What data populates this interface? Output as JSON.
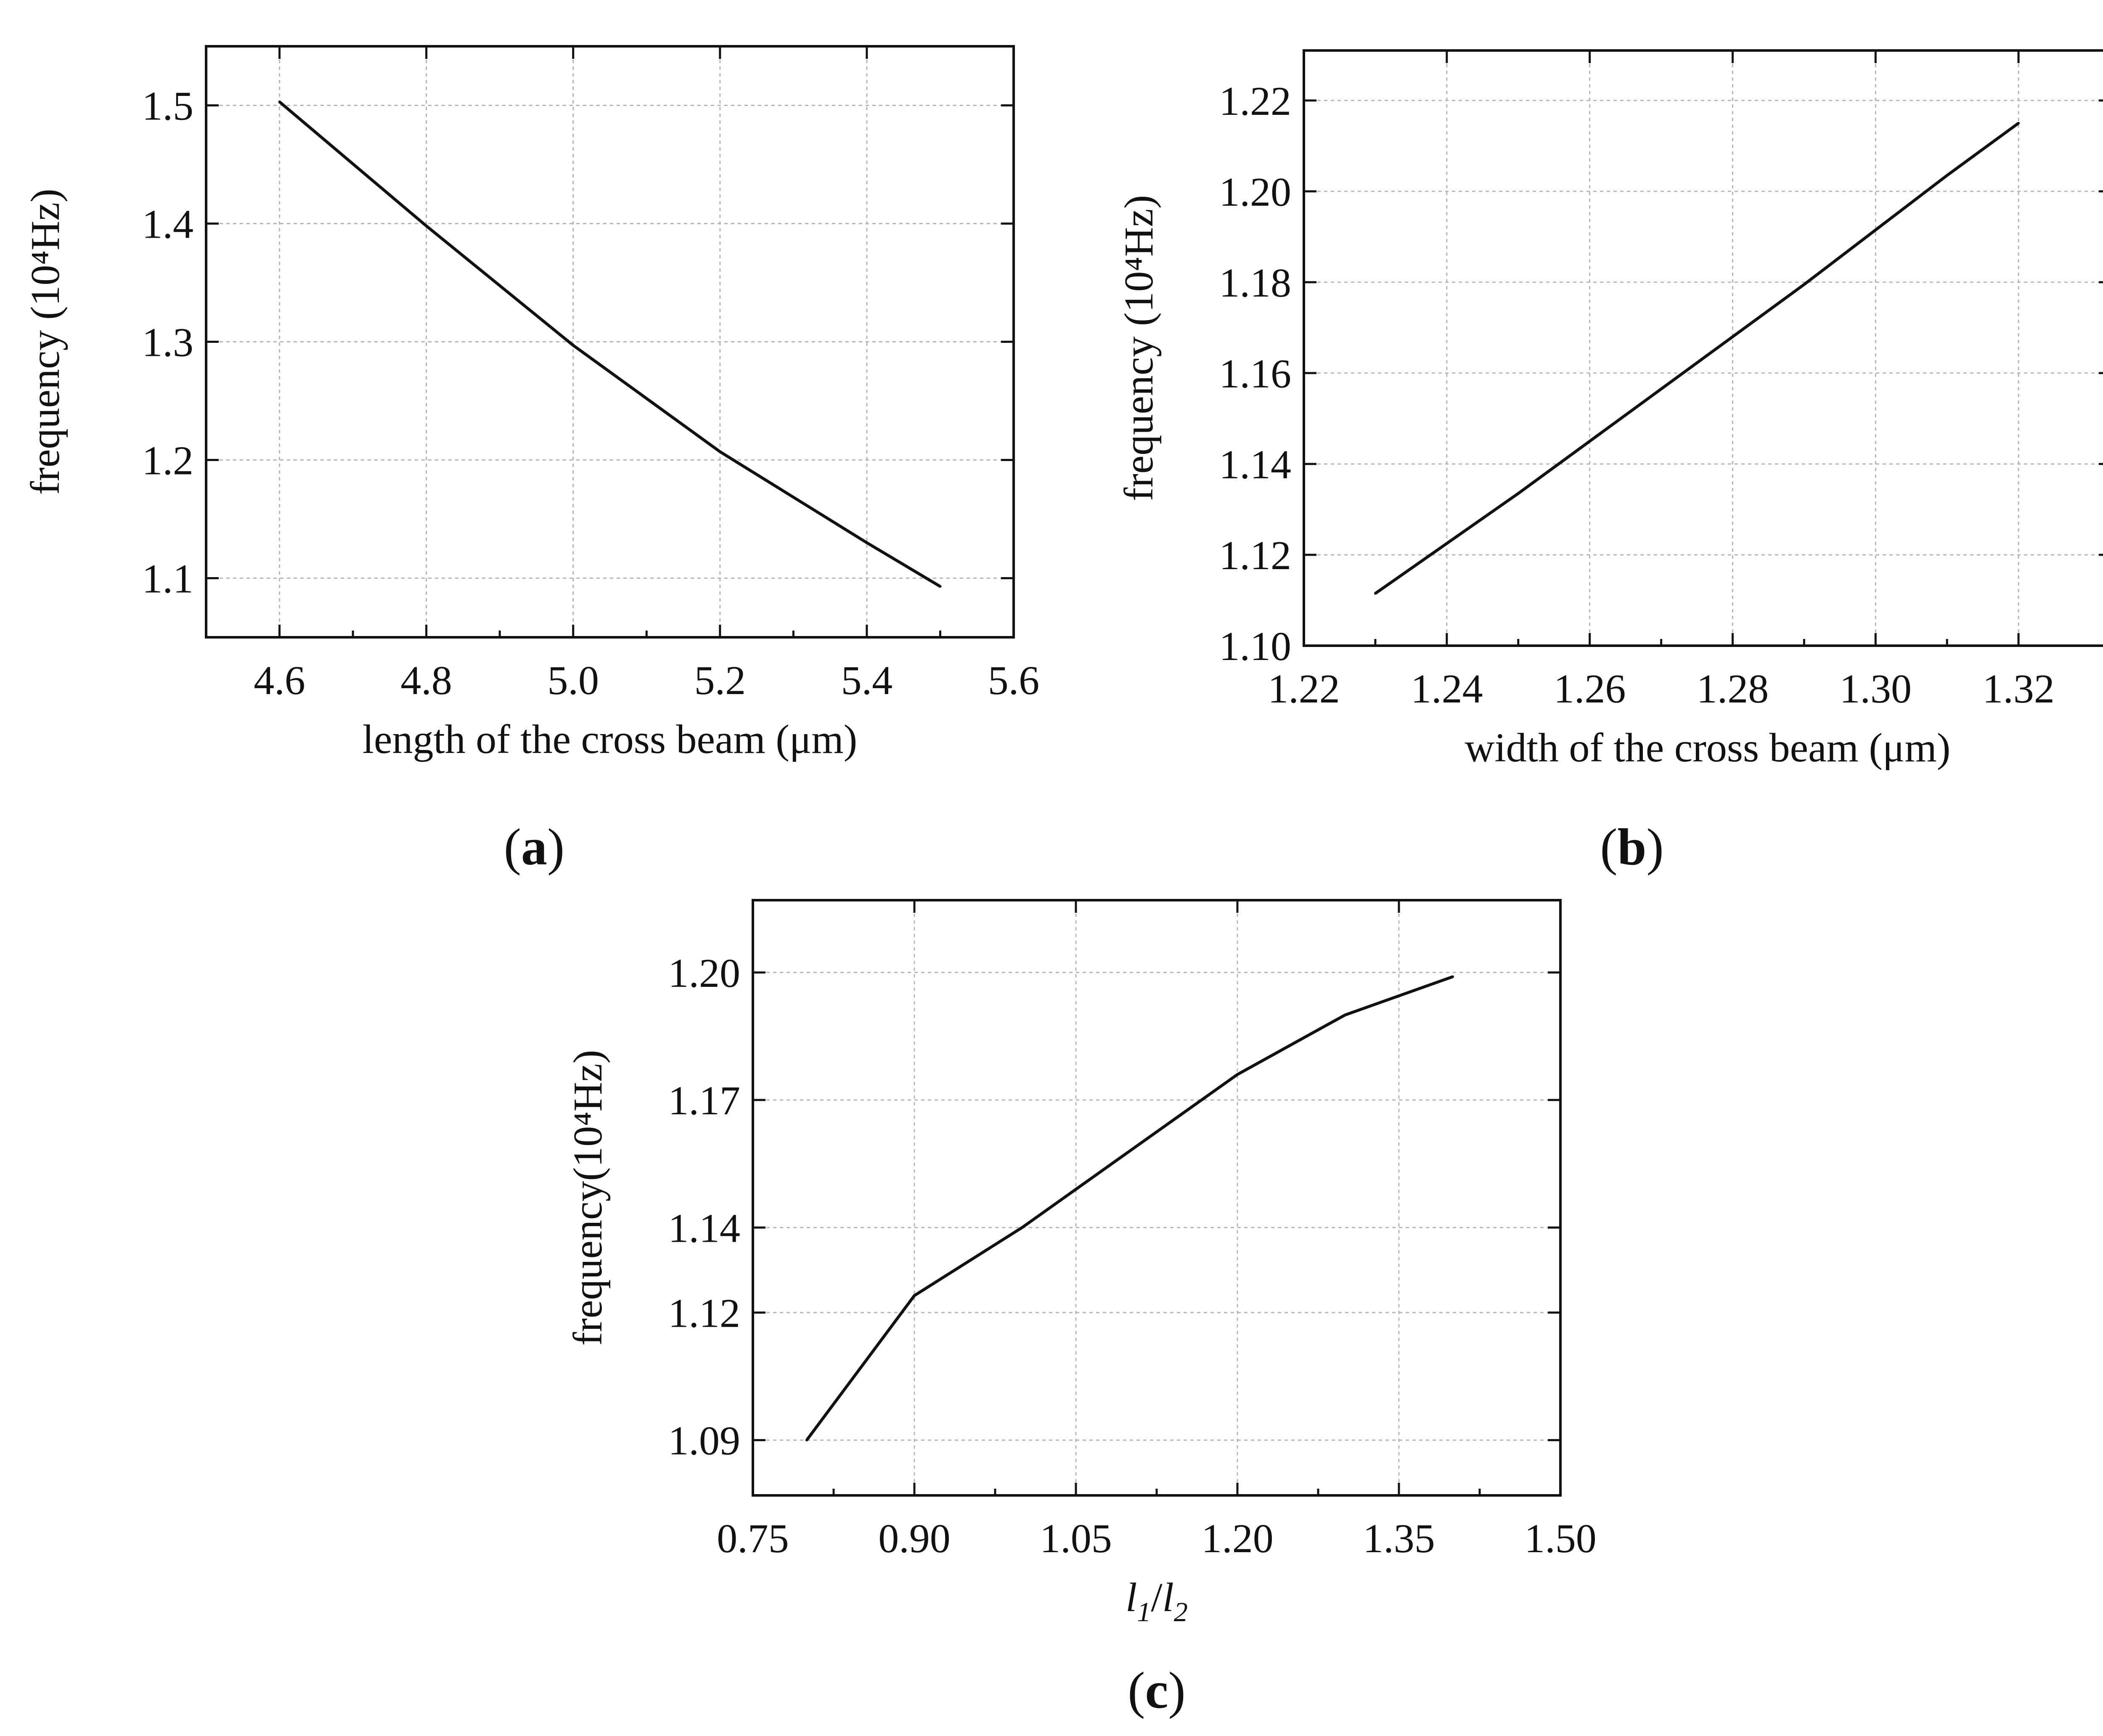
{
  "chart_data": [
    {
      "panel": "(a)",
      "panel_letter": "a",
      "type": "line",
      "xlabel": "length of the cross beam (μm)",
      "ylabel": "frequency (10⁴Hz)",
      "xlim": [
        4.5,
        5.6
      ],
      "ylim": [
        1.05,
        1.55
      ],
      "xticks": [
        "4.6",
        "4.8",
        "5.0",
        "5.2",
        "5.4",
        "5.6"
      ],
      "yticks": [
        "1.1",
        "1.2",
        "1.3",
        "1.4",
        "1.5"
      ],
      "grid": true,
      "series": [
        {
          "x": [
            4.6,
            4.8,
            5.0,
            5.2,
            5.4,
            5.5
          ],
          "y": [
            1.503,
            1.398,
            1.297,
            1.207,
            1.13,
            1.093
          ]
        }
      ]
    },
    {
      "panel": "(b)",
      "panel_letter": "b",
      "type": "line",
      "xlabel": "width of the cross beam (μm)",
      "ylabel": "frequency (10⁴Hz)",
      "xlim": [
        1.22,
        1.333
      ],
      "ylim": [
        1.1,
        1.231
      ],
      "xticks": [
        "1.22",
        "1.24",
        "1.26",
        "1.28",
        "1.30",
        "1.32"
      ],
      "yticks": [
        "1.10",
        "1.12",
        "1.14",
        "1.16",
        "1.18",
        "1.20",
        "1.22"
      ],
      "grid": true,
      "series": [
        {
          "x": [
            1.23,
            1.25,
            1.27,
            1.29,
            1.31,
            1.32
          ],
          "y": [
            1.1115,
            1.1335,
            1.1565,
            1.1795,
            1.2035,
            1.215
          ]
        }
      ]
    },
    {
      "panel": "(c)",
      "panel_letter": "c",
      "type": "line",
      "xlabel": "l1/l2",
      "xlabel_parts": [
        "l",
        "1",
        "/",
        "l",
        "2"
      ],
      "ylabel": "frequency(10⁴Hz)",
      "xlim": [
        0.75,
        1.5
      ],
      "ylim": [
        1.077,
        1.217
      ],
      "xticks": [
        "0.75",
        "0.90",
        "1.05",
        "1.20",
        "1.35",
        "1.50"
      ],
      "yticks": [
        "1.09",
        "1.12",
        "1.14",
        "1.17",
        "1.20"
      ],
      "grid": true,
      "series": [
        {
          "x": [
            0.8,
            0.9,
            1.0,
            1.1,
            1.2,
            1.3,
            1.4
          ],
          "y": [
            1.09,
            1.124,
            1.14,
            1.158,
            1.176,
            1.19,
            1.199
          ]
        }
      ]
    }
  ]
}
